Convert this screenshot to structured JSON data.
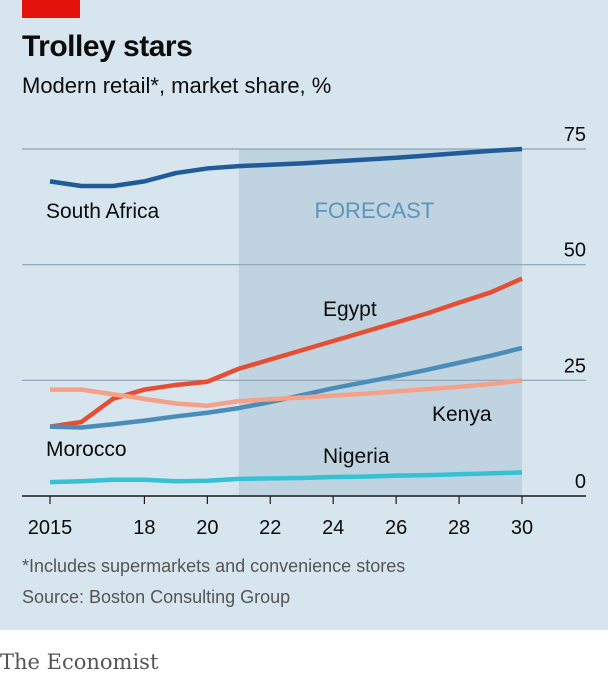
{
  "header": {
    "title": "Trolley stars",
    "subtitle": "Modern retail*, market share, %"
  },
  "footer": {
    "note": "*Includes supermarkets and convenience stores",
    "source": "Source: Boston Consulting Group",
    "brand": "The Economist"
  },
  "colors": {
    "South Africa": "#1f5c99",
    "Egypt": "#e64e34",
    "Morocco": "#4a8db8",
    "Kenya": "#f4a188",
    "Nigeria": "#36c1d4",
    "forecast_shade": "#bfd3e0",
    "forecast_text": "#5b96bb"
  },
  "chart_data": {
    "type": "line",
    "title": "Trolley stars",
    "subtitle": "Modern retail*, market share, %",
    "x": [
      2015,
      2016,
      2017,
      2018,
      2019,
      2020,
      2021,
      2022,
      2023,
      2024,
      2025,
      2026,
      2027,
      2028,
      2029,
      2030
    ],
    "x_tick_labels": [
      "2015",
      "18",
      "20",
      "22",
      "24",
      "26",
      "28",
      "30"
    ],
    "x_ticks": [
      2015,
      2018,
      2020,
      2022,
      2024,
      2026,
      2028,
      2030
    ],
    "y_ticks": [
      0,
      25,
      50,
      75
    ],
    "ylim": [
      0,
      75
    ],
    "xlim": [
      2015,
      2030
    ],
    "forecast": {
      "from": 2021,
      "to": 2030,
      "label": "FORECAST"
    },
    "series": [
      {
        "name": "South Africa",
        "values": [
          68,
          67,
          67,
          68,
          69.8,
          70.8,
          71.3,
          71.6,
          71.9,
          72.3,
          72.7,
          73.1,
          73.6,
          74.1,
          74.6,
          75
        ]
      },
      {
        "name": "Egypt",
        "values": [
          15,
          16,
          21,
          23,
          24,
          24.7,
          27.5,
          29.5,
          31.5,
          33.5,
          35.5,
          37.5,
          39.5,
          41.8,
          44,
          47
        ]
      },
      {
        "name": "Morocco",
        "values": [
          15,
          14.8,
          15.5,
          16.3,
          17.2,
          18,
          19,
          20.3,
          21.8,
          23.3,
          24.6,
          25.9,
          27.3,
          28.8,
          30.3,
          32
        ]
      },
      {
        "name": "Kenya",
        "values": [
          23,
          23,
          22,
          21,
          20,
          19.5,
          20.5,
          20.9,
          21.3,
          21.7,
          22.1,
          22.6,
          23.1,
          23.6,
          24.2,
          25
        ]
      },
      {
        "name": "Nigeria",
        "values": [
          3,
          3.2,
          3.5,
          3.5,
          3.2,
          3.3,
          3.7,
          3.8,
          3.9,
          4.1,
          4.2,
          4.4,
          4.5,
          4.7,
          4.9,
          5.1
        ]
      }
    ],
    "grid": true
  }
}
